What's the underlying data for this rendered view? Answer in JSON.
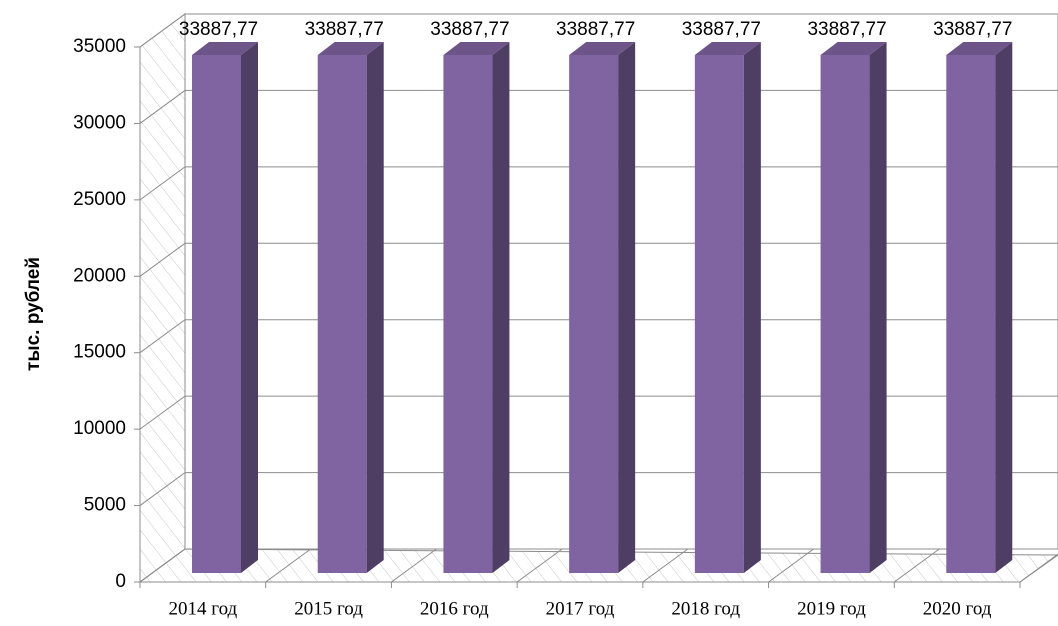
{
  "chart_data": {
    "type": "bar3d",
    "y_label": "тыс. рублей",
    "categories": [
      "2014 год",
      "2015 год",
      "2016 год",
      "2017 год",
      "2018 год",
      "2019 год",
      "2020 год"
    ],
    "values": [
      33887.77,
      33887.77,
      33887.77,
      33887.77,
      33887.77,
      33887.77,
      33887.77
    ],
    "value_labels": [
      "33887,77",
      "33887,77",
      "33887,77",
      "33887,77",
      "33887,77",
      "33887,77",
      "33887,77"
    ],
    "color": "#8064a2",
    "ylim": [
      0,
      35000
    ],
    "yticks": [
      0,
      5000,
      10000,
      15000,
      20000,
      25000,
      30000,
      35000
    ],
    "grid": true
  }
}
